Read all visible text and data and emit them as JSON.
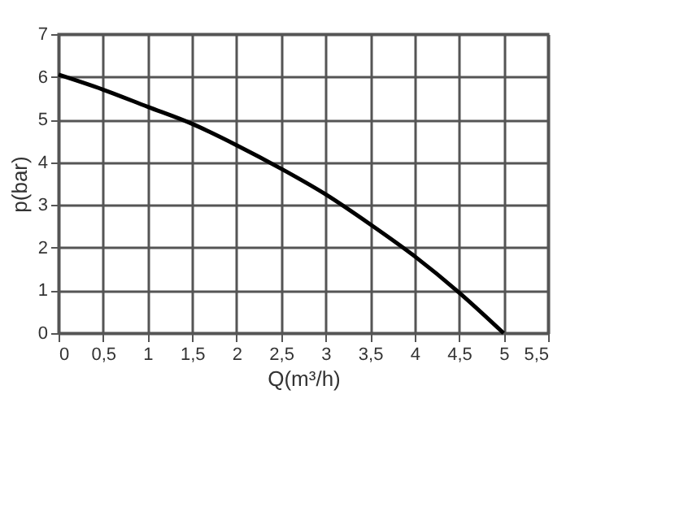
{
  "chart_data": {
    "type": "line",
    "xlabel": "Q(m³/h)",
    "ylabel": "p(bar)",
    "x": [
      0,
      0.5,
      1,
      1.5,
      2,
      2.5,
      3,
      3.5,
      4,
      4.5,
      5
    ],
    "series": [
      {
        "color": "#000000",
        "values": [
          6.05,
          5.7,
          5.3,
          4.9,
          4.4,
          3.85,
          3.25,
          2.55,
          1.8,
          0.95,
          0
        ]
      }
    ],
    "xlim": [
      0,
      5.5
    ],
    "ylim": [
      0,
      7
    ],
    "xticks": [
      0,
      {
        "value": 0.5,
        "label": "0,5"
      },
      1,
      {
        "value": 1.5,
        "label": "1,5"
      },
      2,
      {
        "value": 2.5,
        "label": "2,5"
      },
      3,
      {
        "value": 3.5,
        "label": "3,5"
      },
      4,
      {
        "value": 4.5,
        "label": "4,5"
      },
      5,
      {
        "value": 5.5,
        "label": "5,5"
      }
    ],
    "yticks": [
      0,
      1,
      2,
      3,
      4,
      5,
      6,
      7
    ],
    "grid": true,
    "marker": "none",
    "line_style": "solid"
  }
}
